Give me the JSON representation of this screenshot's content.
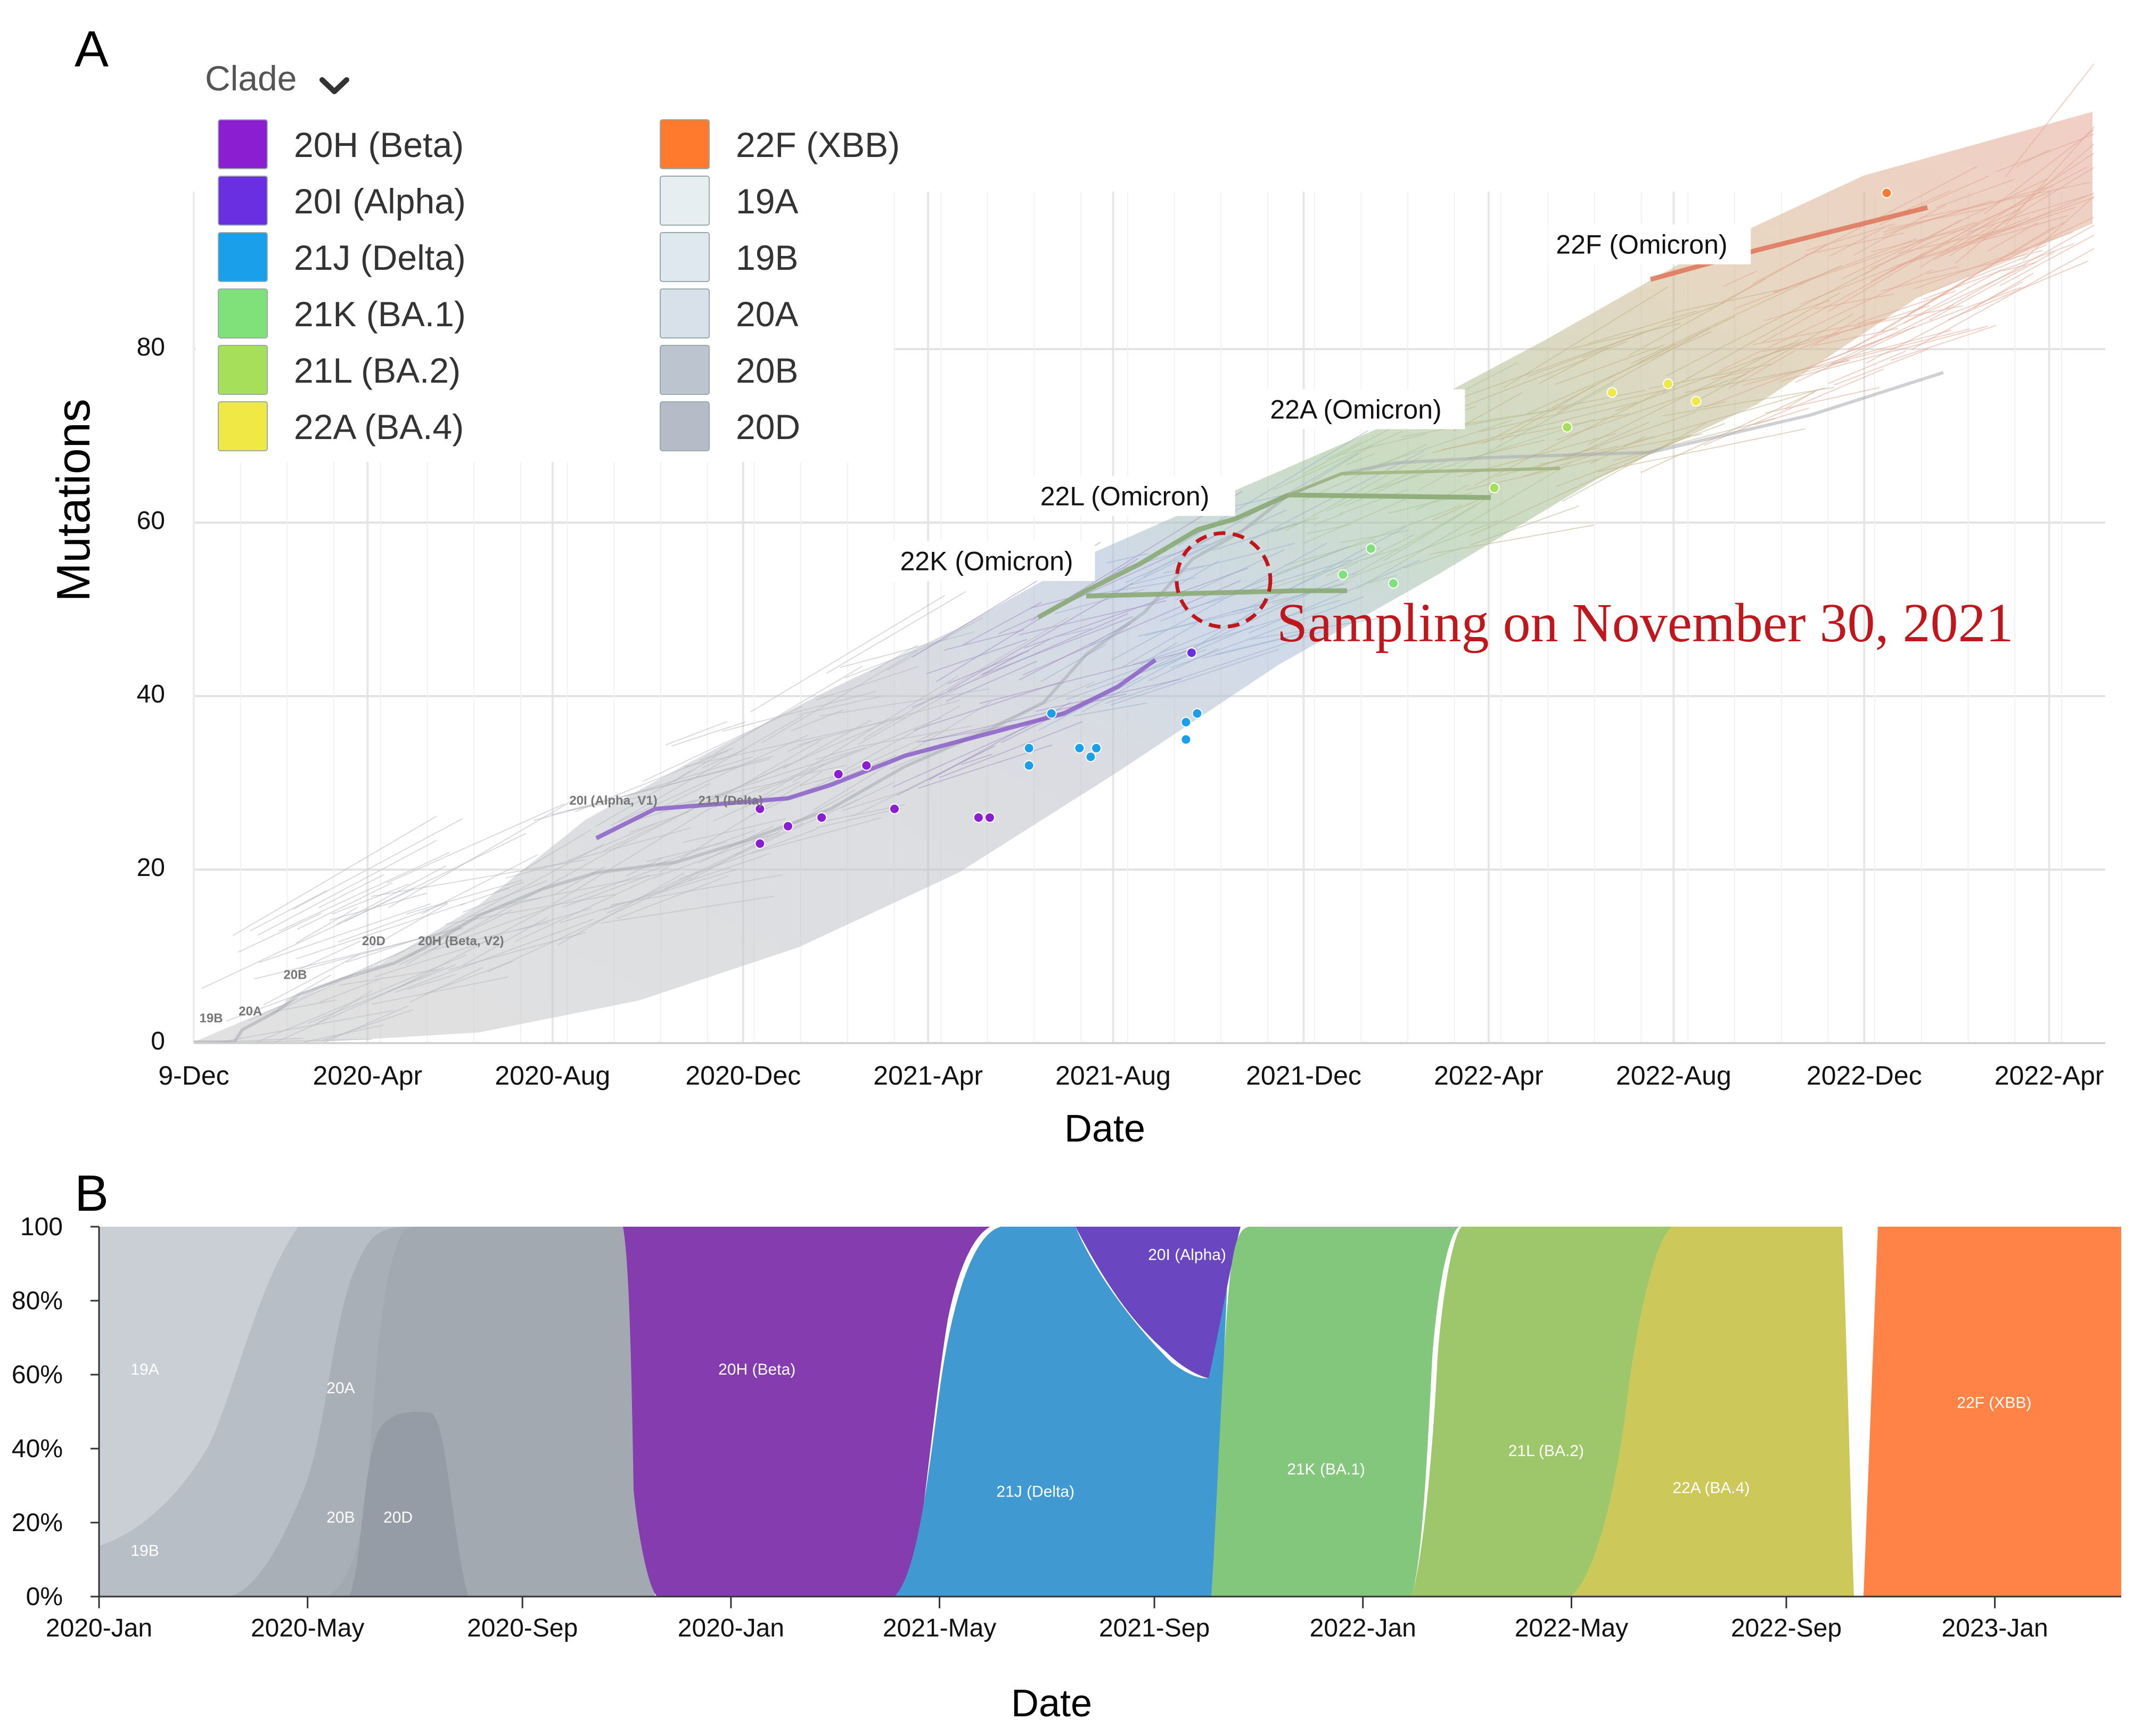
{
  "panels": {
    "a_letter": "A",
    "b_letter": "B"
  },
  "chart_data": [
    {
      "type": "scatter",
      "panel": "A",
      "title": "",
      "xlabel": "Date",
      "ylabel": "Mutations",
      "x_tick_labels": [
        "9-Dec",
        "2020-Apr",
        "2020-Aug",
        "2020-Dec",
        "2021-Apr",
        "2021-Aug",
        "2021-Dec",
        "2022-Apr",
        "2022-Aug",
        "2022-Dec",
        "2022-Apr"
      ],
      "x_tick_values": [
        2019.94,
        2020.25,
        2020.58,
        2020.92,
        2021.25,
        2021.58,
        2021.92,
        2022.25,
        2022.58,
        2022.92,
        2023.25
      ],
      "xlim": [
        2019.94,
        2023.35
      ],
      "y_ticks": [
        0,
        20,
        40,
        60,
        80
      ],
      "ylim": [
        0,
        100
      ],
      "legend": {
        "title": "Clade",
        "entries": [
          {
            "label": "20H (Beta)",
            "color": "#8a1ed0"
          },
          {
            "label": "20I (Alpha)",
            "color": "#6a2fe0"
          },
          {
            "label": "21J (Delta)",
            "color": "#1aa0ea"
          },
          {
            "label": "21K (BA.1)",
            "color": "#80e07a"
          },
          {
            "label": "21L (BA.2)",
            "color": "#a6df5a"
          },
          {
            "label": "22A (BA.4)",
            "color": "#efe845"
          },
          {
            "label": "22F (XBB)",
            "color": "#ff7a2c"
          },
          {
            "label": "19A",
            "color": "#e6eef2"
          },
          {
            "label": "19B",
            "color": "#dfe7ef"
          },
          {
            "label": "20A",
            "color": "#d8e1ea"
          },
          {
            "label": "20B",
            "color": "#bcc4cf"
          },
          {
            "label": "20D",
            "color": "#b5bbc7"
          }
        ]
      },
      "clade_labels": [
        {
          "text": "22F (Omicron)",
          "x": 2022.37,
          "y": 91
        },
        {
          "text": "22A (Omicron)",
          "x": 2021.86,
          "y": 72
        },
        {
          "text": "22L (Omicron)",
          "x": 2021.45,
          "y": 62
        },
        {
          "text": "22K (Omicron)",
          "x": 2021.2,
          "y": 54.5
        },
        {
          "text": "20I (Alpha, V1)",
          "x": 2020.61,
          "y": 27.5
        },
        {
          "text": "21J (Delta)",
          "x": 2020.84,
          "y": 27.5
        },
        {
          "text": "20D",
          "x": 2020.24,
          "y": 11.3
        },
        {
          "text": "20H (Beta, V2)",
          "x": 2020.34,
          "y": 11.3
        },
        {
          "text": "20B",
          "x": 2020.1,
          "y": 7.4
        },
        {
          "text": "20A",
          "x": 2020.02,
          "y": 3.2
        },
        {
          "text": "19B",
          "x": 2019.95,
          "y": 2.4
        }
      ],
      "annotation": {
        "text": "Sampling on November 30, 2021",
        "x": 2021.91,
        "y": 54
      },
      "series": [
        {
          "name": "20H (Beta)",
          "color": "#8a1ed0",
          "points": [
            [
              2020.95,
              27
            ],
            [
              2020.95,
              23
            ],
            [
              2021.0,
              25
            ],
            [
              2021.06,
              26
            ],
            [
              2021.09,
              31
            ],
            [
              2021.14,
              32
            ],
            [
              2021.19,
              27
            ],
            [
              2021.34,
              26
            ],
            [
              2021.36,
              26
            ]
          ]
        },
        {
          "name": "20I (Alpha)",
          "color": "#6a2fe0",
          "points": [
            [
              2021.72,
              45
            ]
          ]
        },
        {
          "name": "21J (Delta)",
          "color": "#1aa0ea",
          "points": [
            [
              2021.43,
              34
            ],
            [
              2021.43,
              32
            ],
            [
              2021.47,
              38
            ],
            [
              2021.52,
              34
            ],
            [
              2021.54,
              33
            ],
            [
              2021.55,
              34
            ],
            [
              2021.71,
              37
            ],
            [
              2021.71,
              35
            ],
            [
              2021.73,
              38
            ]
          ]
        },
        {
          "name": "21K (BA.1)",
          "color": "#80e07a",
          "points": [
            [
              2021.99,
              54
            ],
            [
              2022.04,
              57
            ],
            [
              2022.08,
              53
            ]
          ]
        },
        {
          "name": "21L (BA.2)",
          "color": "#a6df5a",
          "points": [
            [
              2022.26,
              64
            ],
            [
              2022.39,
              71
            ]
          ]
        },
        {
          "name": "22A (BA.4)",
          "color": "#efe845",
          "points": [
            [
              2022.47,
              75
            ],
            [
              2022.57,
              76
            ],
            [
              2022.62,
              74
            ]
          ]
        },
        {
          "name": "22F (XBB)",
          "color": "#ff7a2c",
          "points": [
            [
              2022.96,
              98
            ]
          ]
        }
      ]
    },
    {
      "type": "area",
      "panel": "B",
      "title": "",
      "xlabel": "Date",
      "ylabel": "",
      "x_tick_labels": [
        "2020-Jan",
        "2020-May",
        "2020-Sep",
        "2020-Jan",
        "2021-May",
        "2021-Sep",
        "2022-Jan",
        "2022-May",
        "2022-Sep",
        "2023-Jan"
      ],
      "x_tick_values": [
        2020.0,
        2020.33,
        2020.67,
        2021.0,
        2021.33,
        2021.67,
        2022.0,
        2022.33,
        2022.67,
        2023.0
      ],
      "xlim": [
        2020.0,
        2023.2
      ],
      "y_tick_labels": [
        "0%",
        "20%",
        "40%",
        "60%",
        "80%",
        "100"
      ],
      "y_tick_values": [
        0,
        20,
        40,
        60,
        80,
        100
      ],
      "ylim": [
        0,
        100
      ],
      "series": [
        {
          "name": "19A",
          "color": "#c9cfd4",
          "label_at": [
            2020.05,
            60
          ]
        },
        {
          "name": "19B",
          "color": "#c5cbd1",
          "label_at": [
            2020.05,
            11
          ]
        },
        {
          "name": "20A",
          "color": "#b7bec6",
          "label_at": [
            2020.36,
            55
          ]
        },
        {
          "name": "20B",
          "color": "#a8afb7",
          "label_at": [
            2020.36,
            20
          ]
        },
        {
          "name": "20D",
          "color": "#9aa1a9",
          "label_at": [
            2020.45,
            20
          ]
        },
        {
          "name": "20H (Beta)",
          "color": "#853cae",
          "label_at": [
            2020.98,
            60
          ]
        },
        {
          "name": "21J (Delta)",
          "color": "#4199d2",
          "label_at": [
            2021.42,
            27
          ]
        },
        {
          "name": "20I (Alpha)",
          "color": "#6a47c0",
          "label_at": [
            2021.66,
            91
          ]
        },
        {
          "name": "21K (BA.1)",
          "color": "#83c77c",
          "label_at": [
            2021.88,
            33
          ]
        },
        {
          "name": "21L (BA.2)",
          "color": "#9ec76b",
          "label_at": [
            2022.23,
            38
          ]
        },
        {
          "name": "22A (BA.4)",
          "color": "#cdc85a",
          "label_at": [
            2022.49,
            28
          ]
        },
        {
          "name": "22F (XBB)",
          "color": "#ff8347",
          "label_at": [
            2022.94,
            51
          ]
        }
      ]
    }
  ]
}
